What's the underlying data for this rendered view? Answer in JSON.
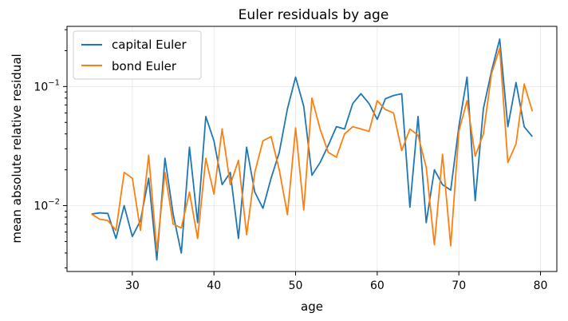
{
  "chart_data": {
    "type": "line",
    "title": "Euler residuals by age",
    "xlabel": "age",
    "ylabel": "mean absolute relative residual",
    "xlim": [
      22,
      82
    ],
    "ylim": [
      0.0028,
      0.32
    ],
    "yscale": "log",
    "grid": true,
    "legend_position": "top-left",
    "x_ticks": [
      30,
      40,
      50,
      60,
      70,
      80
    ],
    "y_ticks": [
      {
        "value": 0.01,
        "base": "10",
        "exp": "−2"
      },
      {
        "value": 0.1,
        "base": "10",
        "exp": "−1"
      }
    ],
    "x": [
      25,
      26,
      27,
      28,
      29,
      30,
      31,
      32,
      33,
      34,
      35,
      36,
      37,
      38,
      39,
      40,
      41,
      42,
      43,
      44,
      45,
      46,
      47,
      48,
      49,
      50,
      51,
      52,
      53,
      54,
      55,
      56,
      57,
      58,
      59,
      60,
      61,
      62,
      63,
      64,
      65,
      66,
      67,
      68,
      69,
      70,
      71,
      72,
      73,
      74,
      75,
      76,
      77,
      78,
      79
    ],
    "series": [
      {
        "name": "capital Euler",
        "color": "#1f77b4",
        "values": [
          0.0085,
          0.0087,
          0.0086,
          0.0053,
          0.01,
          0.0055,
          0.0075,
          0.017,
          0.0035,
          0.025,
          0.0085,
          0.004,
          0.031,
          0.0072,
          0.056,
          0.035,
          0.015,
          0.019,
          0.0053,
          0.031,
          0.013,
          0.0095,
          0.017,
          0.028,
          0.065,
          0.12,
          0.068,
          0.018,
          0.023,
          0.032,
          0.046,
          0.044,
          0.072,
          0.087,
          0.072,
          0.053,
          0.079,
          0.084,
          0.087,
          0.0097,
          0.056,
          0.0072,
          0.02,
          0.015,
          0.0135,
          0.046,
          0.12,
          0.011,
          0.065,
          0.135,
          0.25,
          0.046,
          0.108,
          0.046,
          0.038
        ]
      },
      {
        "name": "bond Euler",
        "color": "#ff7f0e",
        "values": [
          0.0085,
          0.0077,
          0.0075,
          0.0062,
          0.019,
          0.017,
          0.0062,
          0.0265,
          0.0042,
          0.019,
          0.007,
          0.0065,
          0.013,
          0.0053,
          0.025,
          0.0125,
          0.044,
          0.015,
          0.024,
          0.0057,
          0.019,
          0.035,
          0.038,
          0.02,
          0.0084,
          0.045,
          0.0092,
          0.08,
          0.044,
          0.028,
          0.0255,
          0.04,
          0.046,
          0.044,
          0.042,
          0.076,
          0.064,
          0.06,
          0.029,
          0.044,
          0.039,
          0.021,
          0.0047,
          0.027,
          0.0046,
          0.042,
          0.076,
          0.026,
          0.04,
          0.128,
          0.21,
          0.023,
          0.033,
          0.105,
          0.062
        ]
      }
    ]
  }
}
